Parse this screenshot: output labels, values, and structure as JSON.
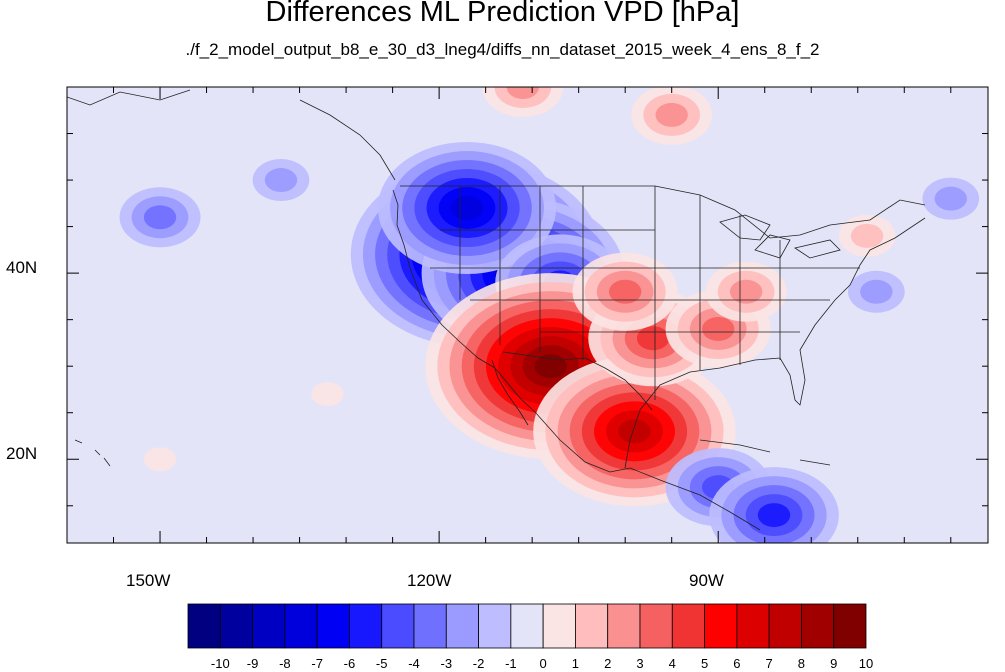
{
  "title": "Differences ML Prediction VPD [hPa]",
  "subtitle": "./f_2_model_output_b8_e_30_d3_lneg4/diffs_nn_dataset_2015_week_4_ens_8_f_2",
  "axes": {
    "lon_labels": [
      "150W",
      "120W",
      "90W"
    ],
    "lat_labels": [
      "40N",
      "20N"
    ]
  },
  "colorbar": {
    "labels": [
      "-10",
      "-9",
      "-8",
      "-7",
      "-6",
      "-5",
      "-4",
      "-3",
      "-2",
      "-1",
      "0",
      "1",
      "2",
      "3",
      "4",
      "5",
      "6",
      "7",
      "8",
      "9",
      "10"
    ],
    "colors": [
      "#000080",
      "#00009e",
      "#0000c2",
      "#0000dd",
      "#0000f5",
      "#1818ff",
      "#4b4bff",
      "#7070ff",
      "#9a9aff",
      "#bdbdff",
      "#e4e4f8",
      "#fbe4e4",
      "#ffbdbd",
      "#fa9090",
      "#f56060",
      "#f03434",
      "#ff0000",
      "#dd0000",
      "#c00000",
      "#a00000",
      "#800000"
    ]
  },
  "chart_data": {
    "type": "heatmap",
    "variable": "VPD difference",
    "units": "hPa",
    "value_range": [
      -10,
      10
    ],
    "lon_range": [
      -160,
      -61
    ],
    "lat_range": [
      11,
      60
    ],
    "patterns": [
      {
        "lon": -116,
        "lat": 42,
        "value": -10
      },
      {
        "lon": -111,
        "lat": 40,
        "value": -8
      },
      {
        "lon": -117,
        "lat": 47,
        "value": -7
      },
      {
        "lon": -107,
        "lat": 39,
        "value": -5
      },
      {
        "lon": -104,
        "lat": 29,
        "value": 9
      },
      {
        "lon": -108,
        "lat": 30,
        "value": 10
      },
      {
        "lon": -99,
        "lat": 23,
        "value": 8
      },
      {
        "lon": -97,
        "lat": 33,
        "value": 5
      },
      {
        "lon": -90,
        "lat": 34,
        "value": 4
      },
      {
        "lon": -87,
        "lat": 38,
        "value": 3
      },
      {
        "lon": -100,
        "lat": 38,
        "value": 4
      },
      {
        "lon": -95,
        "lat": 57,
        "value": 3
      },
      {
        "lon": -111,
        "lat": 60,
        "value": 3
      },
      {
        "lon": -74,
        "lat": 44,
        "value": 2
      },
      {
        "lon": -150,
        "lat": 46,
        "value": -3
      },
      {
        "lon": -137,
        "lat": 50,
        "value": -2
      },
      {
        "lon": -90,
        "lat": 17,
        "value": -4
      },
      {
        "lon": -84,
        "lat": 14,
        "value": -5
      },
      {
        "lon": -73,
        "lat": 38,
        "value": -2
      },
      {
        "lon": -65,
        "lat": 48,
        "value": -2
      },
      {
        "lon": -150,
        "lat": 20,
        "value": 1
      },
      {
        "lon": -132,
        "lat": 27,
        "value": 1
      }
    ]
  }
}
